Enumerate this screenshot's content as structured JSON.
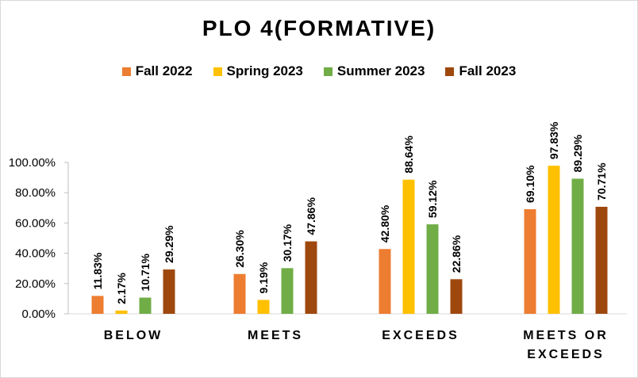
{
  "chart_data": {
    "type": "bar",
    "title": "PLO 4(FORMATIVE)",
    "categories": [
      [
        "BELOW"
      ],
      [
        "MEETS"
      ],
      [
        "EXCEEDS"
      ],
      [
        "MEETS OR",
        "EXCEEDS"
      ]
    ],
    "series": [
      {
        "name": "Fall 2022",
        "color": "#ED7D31",
        "values": [
          11.83,
          26.3,
          42.8,
          69.1
        ],
        "labels": [
          "11.83%",
          "26.30%",
          "42.80%",
          "69.10%"
        ]
      },
      {
        "name": "Spring 2023",
        "color": "#FFC000",
        "values": [
          2.17,
          9.19,
          88.64,
          97.83
        ],
        "labels": [
          "2.17%",
          "9.19%",
          "88.64%",
          "97.83%"
        ]
      },
      {
        "name": "Summer 2023",
        "color": "#70AD47",
        "values": [
          10.71,
          30.17,
          59.12,
          89.29
        ],
        "labels": [
          "10.71%",
          "30.17%",
          "59.12%",
          "89.29%"
        ]
      },
      {
        "name": "Fall 2023",
        "color": "#9E480E",
        "values": [
          29.29,
          47.86,
          22.86,
          70.71
        ],
        "labels": [
          "29.29%",
          "47.86%",
          "22.86%",
          "70.71%"
        ]
      }
    ],
    "ylim": [
      0,
      100
    ],
    "yticks": [
      0,
      20,
      40,
      60,
      80,
      100
    ],
    "ytick_labels": [
      "0.00%",
      "20.00%",
      "40.00%",
      "60.00%",
      "80.00%",
      "100.00%"
    ],
    "legend_position": "top",
    "grid": false,
    "xlabel": "",
    "ylabel": ""
  }
}
